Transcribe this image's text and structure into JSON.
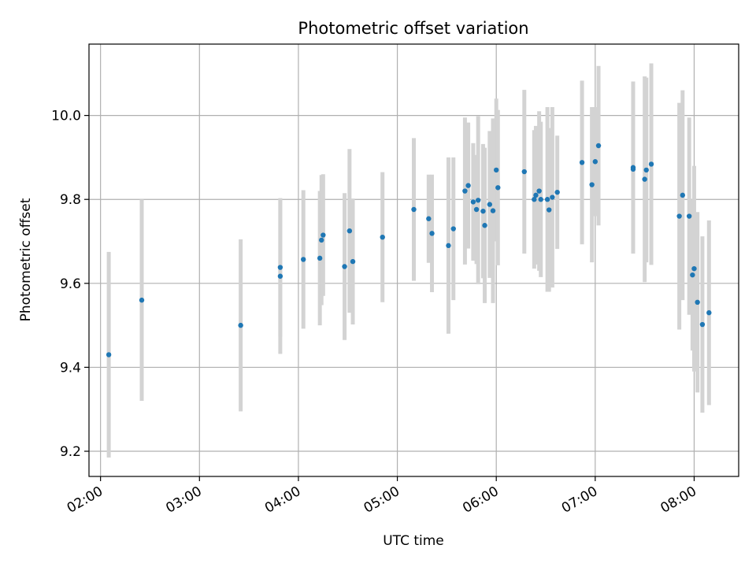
{
  "chart_data": {
    "type": "scatter",
    "title": "Photometric offset variation",
    "xlabel": "UTC time",
    "ylabel": "Photometric offset",
    "grid": true,
    "x_ticks": [
      "02:00",
      "03:00",
      "04:00",
      "05:00",
      "06:00",
      "07:00",
      "08:00"
    ],
    "y_ticks": [
      "9.2",
      "9.4",
      "9.6",
      "9.8",
      "10.0"
    ],
    "xlim": [
      "01:53",
      "08:27"
    ],
    "ylim": [
      9.14,
      10.17
    ],
    "colors": {
      "point": "#1f77b4",
      "errorbar": "#d3d3d3",
      "grid": "#b0b0b0"
    },
    "series": [
      {
        "x": [
          "02:05",
          "02:25",
          "03:25",
          "03:49",
          "03:49",
          "04:03",
          "04:13",
          "04:14",
          "04:15",
          "04:28",
          "04:31",
          "04:33",
          "04:51",
          "05:10",
          "05:19",
          "05:21",
          "05:31",
          "05:34",
          "05:41",
          "05:43",
          "05:46",
          "05:48",
          "05:49",
          "05:52",
          "05:53",
          "05:56",
          "05:58",
          "06:00",
          "06:01",
          "06:17",
          "06:23",
          "06:24",
          "06:26",
          "06:27",
          "06:31",
          "06:32",
          "06:34",
          "06:37",
          "06:52",
          "06:58",
          "07:00",
          "07:02",
          "07:23",
          "07:23",
          "07:30",
          "07:31",
          "07:34",
          "07:51",
          "07:53",
          "07:57",
          "07:59",
          "08:00",
          "08:02",
          "08:05",
          "08:09"
        ],
        "y": [
          9.43,
          9.56,
          9.5,
          9.617,
          9.638,
          9.657,
          9.66,
          9.703,
          9.715,
          9.64,
          9.725,
          9.652,
          9.71,
          9.776,
          9.754,
          9.719,
          9.69,
          9.73,
          9.82,
          9.833,
          9.794,
          9.776,
          9.798,
          9.772,
          9.738,
          9.788,
          9.773,
          9.87,
          9.828,
          9.866,
          9.8,
          9.81,
          9.82,
          9.8,
          9.8,
          9.775,
          9.805,
          9.817,
          9.888,
          9.835,
          9.89,
          9.928,
          9.876,
          9.872,
          9.848,
          9.87,
          9.884,
          9.76,
          9.81,
          9.76,
          9.62,
          9.635,
          9.555,
          9.502,
          9.53
        ],
        "yerr": [
          0.245,
          0.24,
          0.205,
          0.185,
          0.165,
          0.165,
          0.16,
          0.155,
          0.145,
          0.175,
          0.195,
          0.15,
          0.155,
          0.17,
          0.105,
          0.14,
          0.21,
          0.17,
          0.175,
          0.15,
          0.14,
          0.13,
          0.2,
          0.16,
          0.185,
          0.175,
          0.22,
          0.17,
          0.185,
          0.195,
          0.165,
          0.165,
          0.19,
          0.185,
          0.22,
          0.195,
          0.215,
          0.135,
          0.195,
          0.185,
          0.13,
          0.19,
          0.205,
          0.195,
          0.245,
          0.22,
          0.24,
          0.27,
          0.25,
          0.235,
          0.18,
          0.245,
          0.215,
          0.21,
          0.22
        ]
      }
    ]
  }
}
